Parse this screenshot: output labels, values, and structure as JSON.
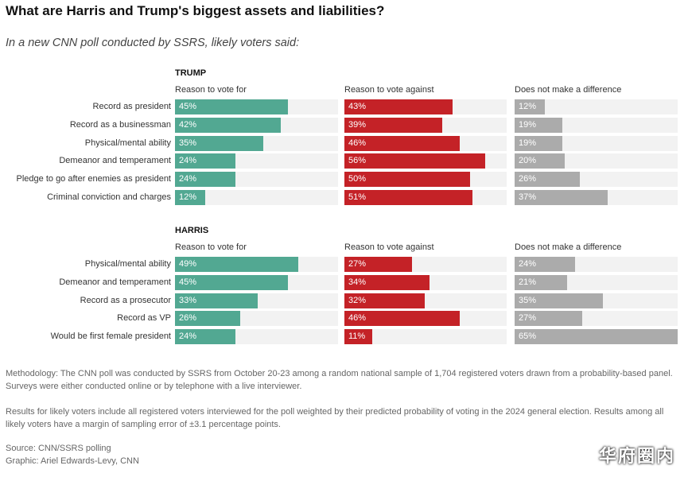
{
  "title": "What are Harris and Trump's biggest assets and liabilities?",
  "subtitle": "In a new CNN poll conducted by SSRS, likely voters said:",
  "colors": {
    "for": "#52a892",
    "against": "#c42227",
    "nodiff": "#ababab",
    "track": "#f2f2f2"
  },
  "chart_data": [
    {
      "type": "bar",
      "title": "TRUMP",
      "columns": [
        "Reason to vote for",
        "Reason to vote against",
        "Does not make a difference"
      ],
      "categories": [
        "Record as president",
        "Record as a businessman",
        "Physical/mental ability",
        "Demeanor and temperament",
        "Pledge to go after enemies as president",
        "Criminal conviction and charges"
      ],
      "series": [
        {
          "name": "Reason to vote for",
          "values": [
            45,
            42,
            35,
            24,
            24,
            12
          ]
        },
        {
          "name": "Reason to vote against",
          "values": [
            43,
            39,
            46,
            56,
            50,
            51
          ]
        },
        {
          "name": "Does not make a difference",
          "values": [
            12,
            19,
            19,
            20,
            26,
            37
          ]
        }
      ],
      "unit": "%",
      "xlim": [
        0,
        65
      ]
    },
    {
      "type": "bar",
      "title": "HARRIS",
      "columns": [
        "Reason to vote for",
        "Reason to vote against",
        "Does not make a difference"
      ],
      "categories": [
        "Physical/mental ability",
        "Demeanor and temperament",
        "Record as a prosecutor",
        "Record as VP",
        "Would be first female president"
      ],
      "series": [
        {
          "name": "Reason to vote for",
          "values": [
            49,
            45,
            33,
            26,
            24
          ]
        },
        {
          "name": "Reason to vote against",
          "values": [
            27,
            34,
            32,
            46,
            11
          ]
        },
        {
          "name": "Does not make a difference",
          "values": [
            24,
            21,
            35,
            27,
            65
          ]
        }
      ],
      "unit": "%",
      "xlim": [
        0,
        65
      ]
    }
  ],
  "notes": {
    "methodology": "Methodology: The CNN poll was conducted by SSRS from October 20-23 among a random national sample of 1,704 registered voters drawn from a probability-based panel. Surveys were either conducted online or by telephone with a live interviewer.",
    "results": "Results for likely voters include all registered voters interviewed for the poll weighted by their predicted probability of voting in the 2024 general election. Results among all likely voters have a margin of sampling error of ±3.1 percentage points.",
    "source": "Source: CNN/SSRS polling",
    "graphic": "Graphic: Ariel Edwards-Levy, CNN"
  },
  "watermark": "华府圈内"
}
